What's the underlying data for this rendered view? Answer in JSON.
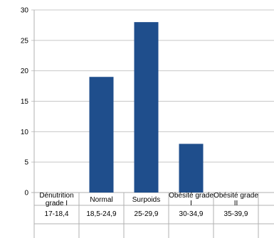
{
  "chart_data": {
    "type": "bar",
    "categories": [
      [
        "Dénutrition",
        "grade I"
      ],
      [
        "Normal"
      ],
      [
        "Surpoids"
      ],
      [
        "Obésité grade",
        "I"
      ],
      [
        "Obésité grade",
        "II"
      ]
    ],
    "ranges": [
      "17-18,4",
      "18,5-24,9",
      "25-29,9",
      "30-34,9",
      "35-39,9"
    ],
    "values": [
      0,
      19,
      28,
      8,
      0
    ],
    "ylim": [
      0,
      30
    ],
    "yticks": [
      "0",
      "5",
      "10",
      "15",
      "20",
      "25",
      "30"
    ],
    "grid": "horizontal",
    "bar_color": "#1F4E8C",
    "title": "",
    "xlabel": "",
    "ylabel": ""
  }
}
